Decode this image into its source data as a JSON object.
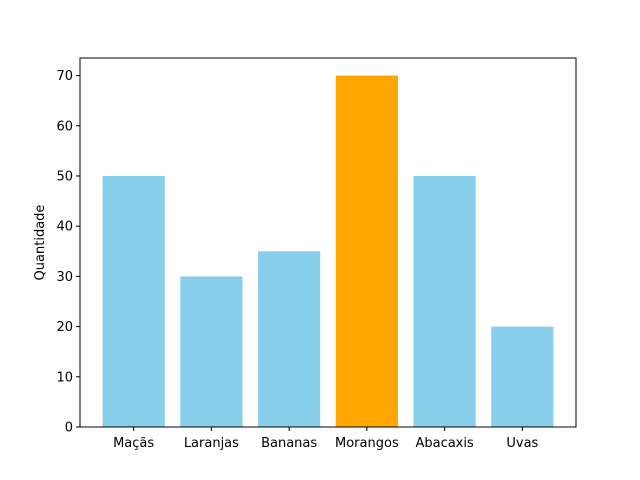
{
  "chart_data": {
    "type": "bar",
    "categories": [
      "Maçãs",
      "Laranjas",
      "Bananas",
      "Morangos",
      "Abacaxis",
      "Uvas"
    ],
    "values": [
      50,
      30,
      35,
      70,
      50,
      20
    ],
    "bar_colors": [
      "#87CEEB",
      "#87CEEB",
      "#87CEEB",
      "#FFA500",
      "#87CEEB",
      "#87CEEB"
    ],
    "title": "",
    "xlabel": "",
    "ylabel": "Quantidade",
    "ylim": [
      0,
      70
    ],
    "yticks": [
      0,
      10,
      20,
      30,
      40,
      50,
      60,
      70
    ],
    "grid": false,
    "legend": false
  }
}
